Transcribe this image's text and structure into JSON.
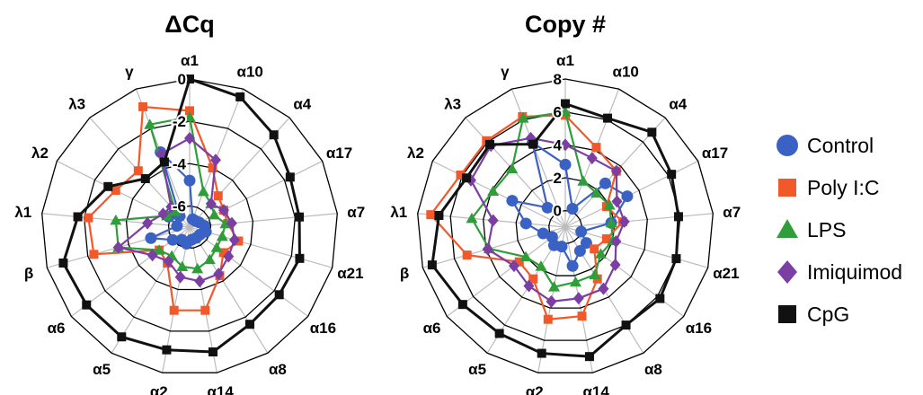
{
  "chart_data": [
    {
      "type": "radar",
      "title": "ΔCq",
      "axes": [
        "α1",
        "α10",
        "α4",
        "α17",
        "α7",
        "α21",
        "α16",
        "α8",
        "α14",
        "α2",
        "α5",
        "α6",
        "β",
        "λ1",
        "λ2",
        "λ3",
        "γ"
      ],
      "range": [
        -7,
        0
      ],
      "ticks": [
        0,
        -2,
        -4,
        -6
      ],
      "tick_labels": [
        "0",
        "-2",
        "-4",
        "-6"
      ],
      "series": [
        {
          "name": "Control",
          "values": [
            -4.8,
            -6.6,
            -6.6,
            -6.5,
            -6.3,
            -6.2,
            -6.4,
            -6.4,
            -6.4,
            -6.2,
            -6.3,
            -6.0,
            -5.1,
            -6.4,
            -5.9,
            -6.3,
            -3.2
          ]
        },
        {
          "name": "Poly I:C",
          "values": [
            -1.5,
            -4.0,
            -5.0,
            -5.2,
            -5.2,
            -4.6,
            -5.0,
            -4.3,
            -3.0,
            -3.0,
            -5.0,
            -5.2,
            -2.3,
            -2.2,
            -3.1,
            -3.4,
            -0.9
          ]
        },
        {
          "name": "LPS",
          "values": [
            -1.8,
            -5.2,
            -5.5,
            -5.7,
            -5.3,
            -5.4,
            -5.4,
            -5.2,
            -5.0,
            -5.1,
            -5.4,
            -5.2,
            -3.5,
            -3.5,
            -5.8,
            -6.0,
            -1.8
          ]
        },
        {
          "name": "Imiquimod",
          "values": [
            -2.8,
            -3.6,
            -5.5,
            -5.2,
            -5.0,
            -4.8,
            -4.7,
            -4.4,
            -4.4,
            -4.6,
            -5.1,
            -4.8,
            -3.5,
            -5.0,
            -5.6,
            -5.7,
            -3.3
          ]
        },
        {
          "name": "CpG",
          "values": [
            0.0,
            -0.4,
            -1.1,
            -1.7,
            -1.8,
            -1.6,
            -1.7,
            -1.6,
            -1.0,
            -1.1,
            -0.9,
            -0.9,
            -0.8,
            -1.7,
            -2.7,
            -3.9,
            -3.7
          ]
        }
      ]
    },
    {
      "type": "radar",
      "title": "Copy #",
      "axes": [
        "α1",
        "α10",
        "α4",
        "α17",
        "α7",
        "α21",
        "α16",
        "α8",
        "α14",
        "α2",
        "α5",
        "α6",
        "β",
        "λ1",
        "λ2",
        "λ3",
        "γ"
      ],
      "range": [
        -1,
        8
      ],
      "ticks": [
        8,
        6,
        4,
        2,
        0
      ],
      "tick_labels": [
        "8",
        "6",
        "4",
        "2",
        "0"
      ],
      "series": [
        {
          "name": "Control",
          "values": [
            2.8,
            0.2,
            2.6,
            3.2,
            1.8,
            0.0,
            0.6,
            0.7,
            1.4,
            0.2,
            0.3,
            0.0,
            0.4,
            1.4,
            2.6,
            0.6,
            4.5
          ]
        },
        {
          "name": "Poly I:C",
          "values": [
            5.8,
            4.2,
            3.6,
            1.8,
            2.5,
            1.6,
            1.2,
            2.7,
            4.5,
            4.7,
            2.7,
            2.5,
            5.2,
            7.2,
            6.1,
            6.1,
            6.2
          ]
        },
        {
          "name": "LPS",
          "values": [
            6.0,
            2.0,
            1.8,
            2.0,
            1.8,
            2.0,
            1.7,
            2.4,
            2.4,
            2.7,
            1.8,
            2.0,
            3.8,
            4.7,
            3.9,
            3.8,
            6.1
          ]
        },
        {
          "name": "Imiquimod",
          "values": [
            4.0,
            3.5,
            3.6,
            2.5,
            2.6,
            2.2,
            2.8,
            3.4,
            3.4,
            3.6,
            3.2,
            2.9,
            3.9,
            3.4,
            5.4,
            5.7,
            4.8
          ]
        },
        {
          "name": "CpG",
          "values": [
            6.5,
            6.1,
            6.8,
            6.2,
            5.9,
            6.0,
            6.2,
            6.0,
            7.0,
            6.8,
            6.6,
            6.8,
            7.4,
            6.7,
            5.7,
            5.8,
            4.4
          ]
        }
      ]
    }
  ],
  "legend": [
    {
      "name": "Control",
      "color": "#3a62c4",
      "marker": "circle"
    },
    {
      "name": "Poly I:C",
      "color": "#f2592a",
      "marker": "square"
    },
    {
      "name": "LPS",
      "color": "#2f9e3a",
      "marker": "triangle"
    },
    {
      "name": "Imiquimod",
      "color": "#7b3fa3",
      "marker": "diamond"
    },
    {
      "name": "CpG",
      "color": "#111111",
      "marker": "square"
    }
  ],
  "colors": {
    "grid": "#bbbbbb",
    "ring": "#000000"
  }
}
